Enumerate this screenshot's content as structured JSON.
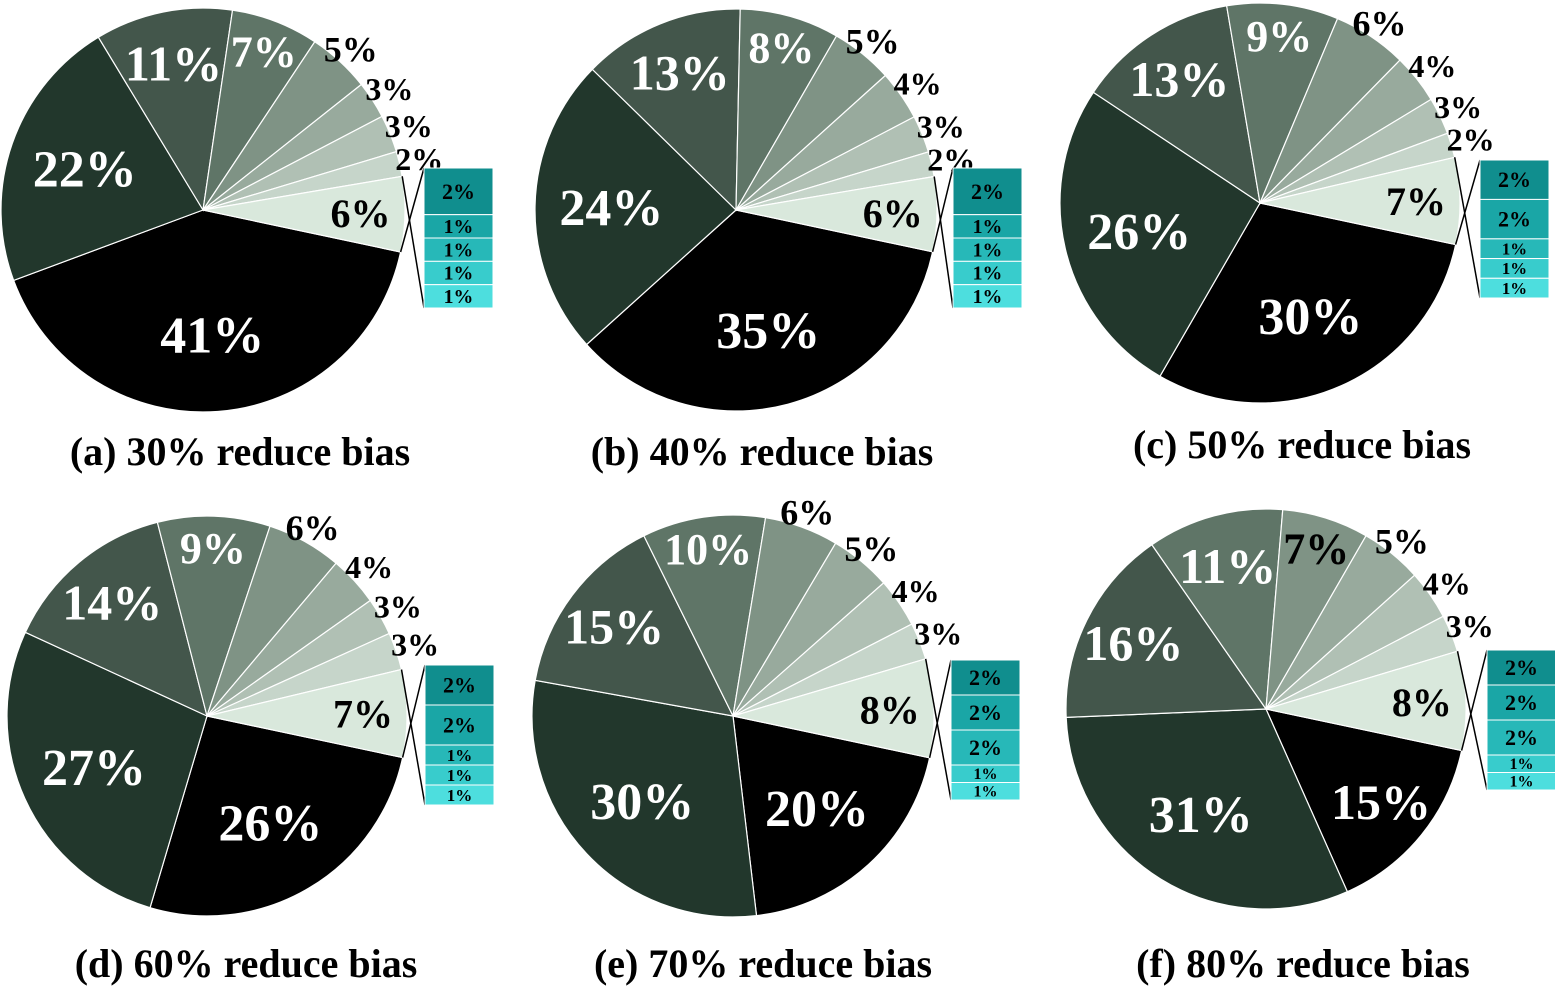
{
  "chart_data": [
    {
      "type": "pie",
      "title": "(a) 30% reduce bias",
      "pie_values": [
        41,
        22,
        11,
        7,
        5,
        3,
        3,
        2,
        6
      ],
      "pie_labels": [
        "41%",
        "22%",
        "11%",
        "7%",
        "5%",
        "3%",
        "3%",
        "2%",
        "6%"
      ],
      "breakout_values": [
        2,
        1,
        1,
        1,
        1
      ],
      "breakout_labels": [
        "2%",
        "1%",
        "1%",
        "1%",
        "1%"
      ]
    },
    {
      "type": "pie",
      "title": "(b) 40% reduce bias",
      "pie_values": [
        35,
        24,
        13,
        8,
        5,
        4,
        3,
        2,
        6
      ],
      "pie_labels": [
        "35%",
        "24%",
        "13%",
        "8%",
        "5%",
        "4%",
        "3%",
        "2%",
        "6%"
      ],
      "breakout_values": [
        2,
        1,
        1,
        1,
        1
      ],
      "breakout_labels": [
        "2%",
        "1%",
        "1%",
        "1%",
        "1%"
      ]
    },
    {
      "type": "pie",
      "title": "(c) 50% reduce bias",
      "pie_values": [
        30,
        26,
        13,
        9,
        6,
        4,
        3,
        2,
        7
      ],
      "pie_labels": [
        "30%",
        "26%",
        "13%",
        "9%",
        "6%",
        "4%",
        "3%",
        "2%",
        "7%"
      ],
      "breakout_values": [
        2,
        2,
        1,
        1,
        1
      ],
      "breakout_labels": [
        "2%",
        "2%",
        "1%",
        "1%",
        "1%"
      ]
    },
    {
      "type": "pie",
      "title": "(d) 60% reduce bias",
      "pie_values": [
        26,
        27,
        14,
        9,
        6,
        4,
        3,
        3,
        7
      ],
      "pie_labels": [
        "26%",
        "27%",
        "14%",
        "9%",
        "6%",
        "4%",
        "3%",
        "3%",
        "7%"
      ],
      "breakout_values": [
        2,
        2,
        1,
        1,
        1
      ],
      "breakout_labels": [
        "2%",
        "2%",
        "1%",
        "1%",
        "1%"
      ]
    },
    {
      "type": "pie",
      "title": "(e) 70% reduce bias",
      "pie_values": [
        20,
        30,
        15,
        10,
        6,
        5,
        4,
        3,
        8
      ],
      "pie_labels": [
        "20%",
        "30%",
        "15%",
        "10%",
        "6%",
        "5%",
        "4%",
        "3%",
        "8%"
      ],
      "breakout_values": [
        2,
        2,
        2,
        1,
        1
      ],
      "breakout_labels": [
        "2%",
        "2%",
        "2%",
        "1%",
        "1%"
      ]
    },
    {
      "type": "pie",
      "title": "(f) 80% reduce bias",
      "pie_values": [
        15,
        31,
        16,
        11,
        7,
        5,
        4,
        3,
        8
      ],
      "pie_labels": [
        "15%",
        "31%",
        "16%",
        "11%",
        "7%",
        "5%",
        "4%",
        "3%",
        "8%"
      ],
      "breakout_values": [
        2,
        2,
        2,
        1,
        1
      ],
      "breakout_labels": [
        "2%",
        "2%",
        "2%",
        "1%",
        "1%"
      ]
    }
  ],
  "colors": {
    "slices": [
      "#000000",
      "#22372c",
      "#43564b",
      "#5f7567",
      "#7f9385",
      "#98aa9d",
      "#b0c0b4",
      "#c6d5ca",
      "#d9e8dc"
    ],
    "breakout": [
      "#108e8e",
      "#1aa6a6",
      "#27b8b8",
      "#38cccc",
      "#4ddede"
    ],
    "slice_text": [
      "#ffffff",
      "#ffffff",
      "#ffffff",
      "#ffffff",
      "#000000",
      "#000000",
      "#000000",
      "#000000",
      "#000000"
    ]
  }
}
